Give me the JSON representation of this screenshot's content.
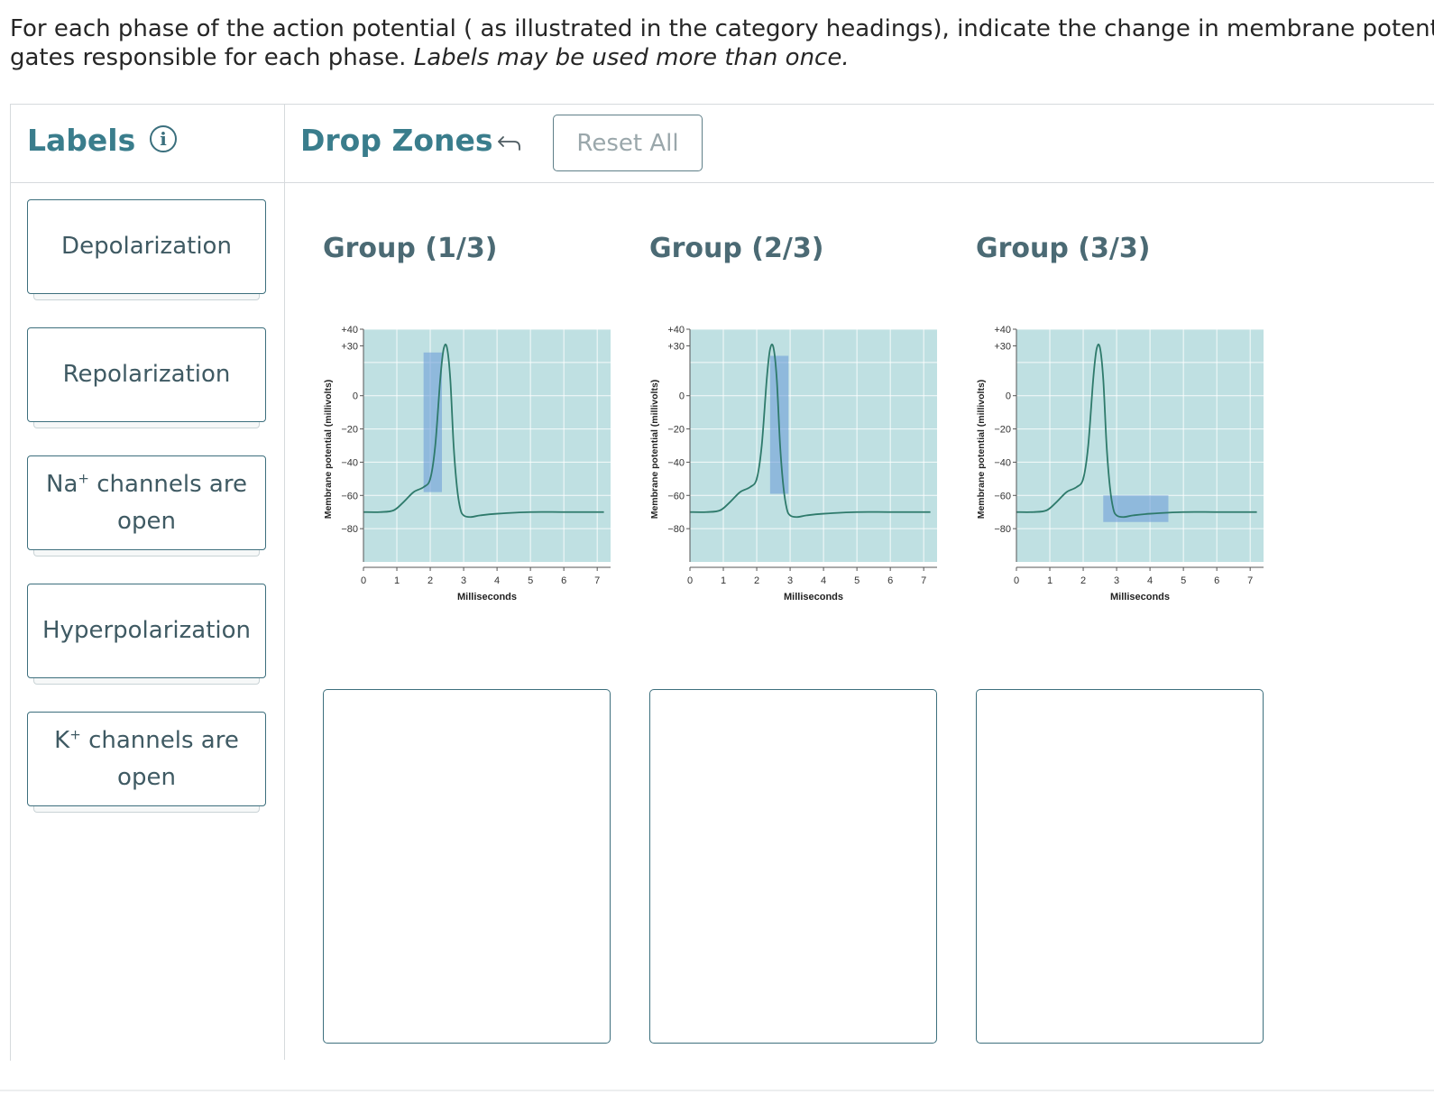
{
  "prompt": {
    "line1": "For each phase of the action potential ( as illustrated in the category headings), indicate the change in membrane potential and",
    "line2_regular": "gates responsible for each phase. ",
    "line2_italic": "Labels may be used more than once."
  },
  "labels_panel": {
    "title": "Labels",
    "info_icon": "info-icon",
    "items": [
      {
        "label": "Depolarization"
      },
      {
        "label": "Repolarization"
      },
      {
        "ion": "Na",
        "charge": "+",
        "line1_rest": " channels are",
        "line2": "open"
      },
      {
        "label": "Hyperpolarization"
      },
      {
        "ion": "K",
        "charge": "+",
        "line1_rest": " channels are",
        "line2": "open"
      }
    ]
  },
  "drop_zones_panel": {
    "title": "Drop Zones",
    "undo_icon": "undo-arrow-icon",
    "reset_label": "Reset All"
  },
  "groups": [
    {
      "title": "Group (1/3)"
    },
    {
      "title": "Group (2/3)"
    },
    {
      "title": "Group (3/3)"
    }
  ],
  "colors": {
    "accent": "#3a7d8c",
    "chart_bg": "#bfe0e2",
    "trace": "#2e7a6b",
    "highlight": "#6f9fd8"
  },
  "chart_data": [
    {
      "type": "line",
      "xlabel": "Milliseconds",
      "ylabel": "Membrane potential (millivolts)",
      "xlim": [
        0,
        7.4
      ],
      "ylim": [
        -100,
        40
      ],
      "x_ticks": [
        "0",
        "1",
        "2",
        "3",
        "4",
        "5",
        "6",
        "7"
      ],
      "y_ticks": [
        {
          "v": 40,
          "t": "+40"
        },
        {
          "v": 30,
          "t": "+30"
        },
        {
          "v": 0,
          "t": "0"
        },
        {
          "v": -20,
          "t": "−20"
        },
        {
          "v": -40,
          "t": "−40"
        },
        {
          "v": -60,
          "t": "−60"
        },
        {
          "v": -80,
          "t": "−80"
        }
      ],
      "grid": true,
      "series": [
        {
          "x": [
            0,
            0.5,
            0.9,
            1.2,
            1.5,
            1.8,
            2.0,
            2.15,
            2.3,
            2.4,
            2.5,
            2.6,
            2.7,
            2.8,
            2.9,
            3.0,
            3.2,
            3.5,
            4.0,
            5.0,
            6.0,
            7.2
          ],
          "y": [
            -70,
            -70,
            -69,
            -64,
            -58,
            -55,
            -50,
            -30,
            10,
            28,
            29,
            10,
            -30,
            -55,
            -68,
            -72,
            -73,
            -72,
            -71,
            -70,
            -70,
            -70
          ]
        }
      ],
      "highlight": {
        "x": [
          1.8,
          2.35
        ],
        "y": [
          -58,
          26
        ]
      }
    },
    {
      "type": "line",
      "xlabel": "Milliseconds",
      "ylabel": "Membrane potential (millivolts)",
      "xlim": [
        0,
        7.4
      ],
      "ylim": [
        -100,
        40
      ],
      "x_ticks": [
        "0",
        "1",
        "2",
        "3",
        "4",
        "5",
        "6",
        "7"
      ],
      "y_ticks": [
        {
          "v": 40,
          "t": "+40"
        },
        {
          "v": 30,
          "t": "+30"
        },
        {
          "v": 0,
          "t": "0"
        },
        {
          "v": -20,
          "t": "−20"
        },
        {
          "v": -40,
          "t": "−40"
        },
        {
          "v": -60,
          "t": "−60"
        },
        {
          "v": -80,
          "t": "−80"
        }
      ],
      "grid": true,
      "series": [
        {
          "x": [
            0,
            0.5,
            0.9,
            1.2,
            1.5,
            1.8,
            2.0,
            2.15,
            2.3,
            2.4,
            2.5,
            2.6,
            2.7,
            2.8,
            2.9,
            3.0,
            3.2,
            3.5,
            4.0,
            5.0,
            6.0,
            7.2
          ],
          "y": [
            -70,
            -70,
            -69,
            -64,
            -58,
            -55,
            -50,
            -30,
            10,
            28,
            29,
            10,
            -30,
            -55,
            -68,
            -72,
            -73,
            -72,
            -71,
            -70,
            -70,
            -70
          ]
        }
      ],
      "highlight": {
        "x": [
          2.4,
          2.95
        ],
        "y": [
          -59,
          24
        ]
      }
    },
    {
      "type": "line",
      "xlabel": "Milliseconds",
      "ylabel": "Membrane potential (millivolts)",
      "xlim": [
        0,
        7.4
      ],
      "ylim": [
        -100,
        40
      ],
      "x_ticks": [
        "0",
        "1",
        "2",
        "3",
        "4",
        "5",
        "6",
        "7"
      ],
      "y_ticks": [
        {
          "v": 40,
          "t": "+40"
        },
        {
          "v": 30,
          "t": "+30"
        },
        {
          "v": 0,
          "t": "0"
        },
        {
          "v": -20,
          "t": "−20"
        },
        {
          "v": -40,
          "t": "−40"
        },
        {
          "v": -60,
          "t": "−60"
        },
        {
          "v": -80,
          "t": "−80"
        }
      ],
      "grid": true,
      "series": [
        {
          "x": [
            0,
            0.5,
            0.9,
            1.2,
            1.5,
            1.8,
            2.0,
            2.15,
            2.3,
            2.4,
            2.5,
            2.6,
            2.7,
            2.8,
            2.9,
            3.0,
            3.2,
            3.5,
            4.0,
            5.0,
            6.0,
            7.2
          ],
          "y": [
            -70,
            -70,
            -69,
            -64,
            -58,
            -55,
            -50,
            -30,
            10,
            28,
            29,
            10,
            -30,
            -55,
            -68,
            -72,
            -73,
            -72,
            -71,
            -70,
            -70,
            -70
          ]
        }
      ],
      "highlight": {
        "x": [
          2.6,
          4.55
        ],
        "y": [
          -76,
          -60
        ]
      }
    }
  ]
}
